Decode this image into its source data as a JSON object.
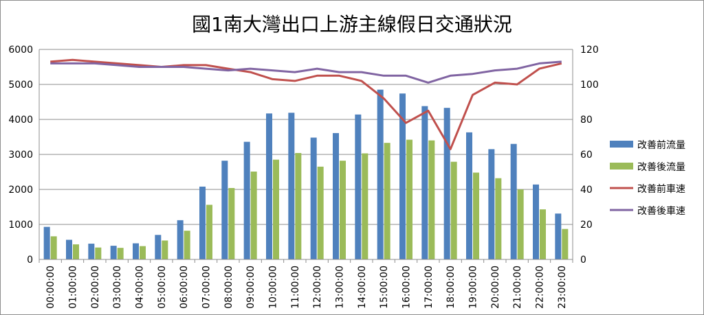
{
  "chart_data": {
    "type": "bar",
    "title": "國1南大灣出口上游主線假日交通狀況",
    "categories": [
      "00:00:00",
      "01:00:00",
      "02:00:00",
      "03:00:00",
      "04:00:00",
      "05:00:00",
      "06:00:00",
      "07:00:00",
      "08:00:00",
      "09:00:00",
      "10:00:00",
      "11:00:00",
      "12:00:00",
      "13:00:00",
      "14:00:00",
      "15:00:00",
      "16:00:00",
      "17:00:00",
      "18:00:00",
      "19:00:00",
      "20:00:00",
      "21:00:00",
      "22:00:00",
      "23:00:00"
    ],
    "left_axis": {
      "min": 0,
      "max": 6000,
      "ticks": [
        0,
        1000,
        2000,
        3000,
        4000,
        5000,
        6000
      ]
    },
    "right_axis": {
      "min": 0,
      "max": 120,
      "ticks": [
        0,
        20,
        40,
        60,
        80,
        100,
        120
      ]
    },
    "grid": true,
    "legend_position": "right",
    "series": [
      {
        "name": "改善前流量",
        "kind": "bar",
        "axis": "left",
        "color": "#4f81bd",
        "values": [
          930,
          560,
          450,
          390,
          460,
          700,
          1120,
          2080,
          2820,
          3360,
          4170,
          4190,
          3480,
          3610,
          4140,
          4850,
          4740,
          4380,
          4330,
          3630,
          3150,
          3300,
          2140,
          1310
        ]
      },
      {
        "name": "改善後流量",
        "kind": "bar",
        "axis": "left",
        "color": "#9bbb59",
        "values": [
          660,
          430,
          340,
          330,
          380,
          540,
          820,
          1560,
          2040,
          2510,
          2850,
          3040,
          2650,
          2820,
          3030,
          3330,
          3420,
          3400,
          2790,
          2480,
          2320,
          2000,
          1430,
          870
        ]
      },
      {
        "name": "改善前車速",
        "kind": "line",
        "axis": "right",
        "color": "#c0504d",
        "values": [
          113,
          114,
          113,
          112,
          111,
          110,
          111,
          111,
          109,
          107,
          103,
          102,
          105,
          105,
          102,
          92,
          78,
          85,
          63,
          94,
          101,
          100,
          109,
          112
        ]
      },
      {
        "name": "改善後車速",
        "kind": "line",
        "axis": "right",
        "color": "#8064a2",
        "values": [
          112,
          112,
          112,
          111,
          110,
          110,
          110,
          109,
          108,
          109,
          108,
          107,
          109,
          107,
          107,
          105,
          105,
          101,
          105,
          106,
          108,
          109,
          112,
          113
        ]
      }
    ]
  }
}
